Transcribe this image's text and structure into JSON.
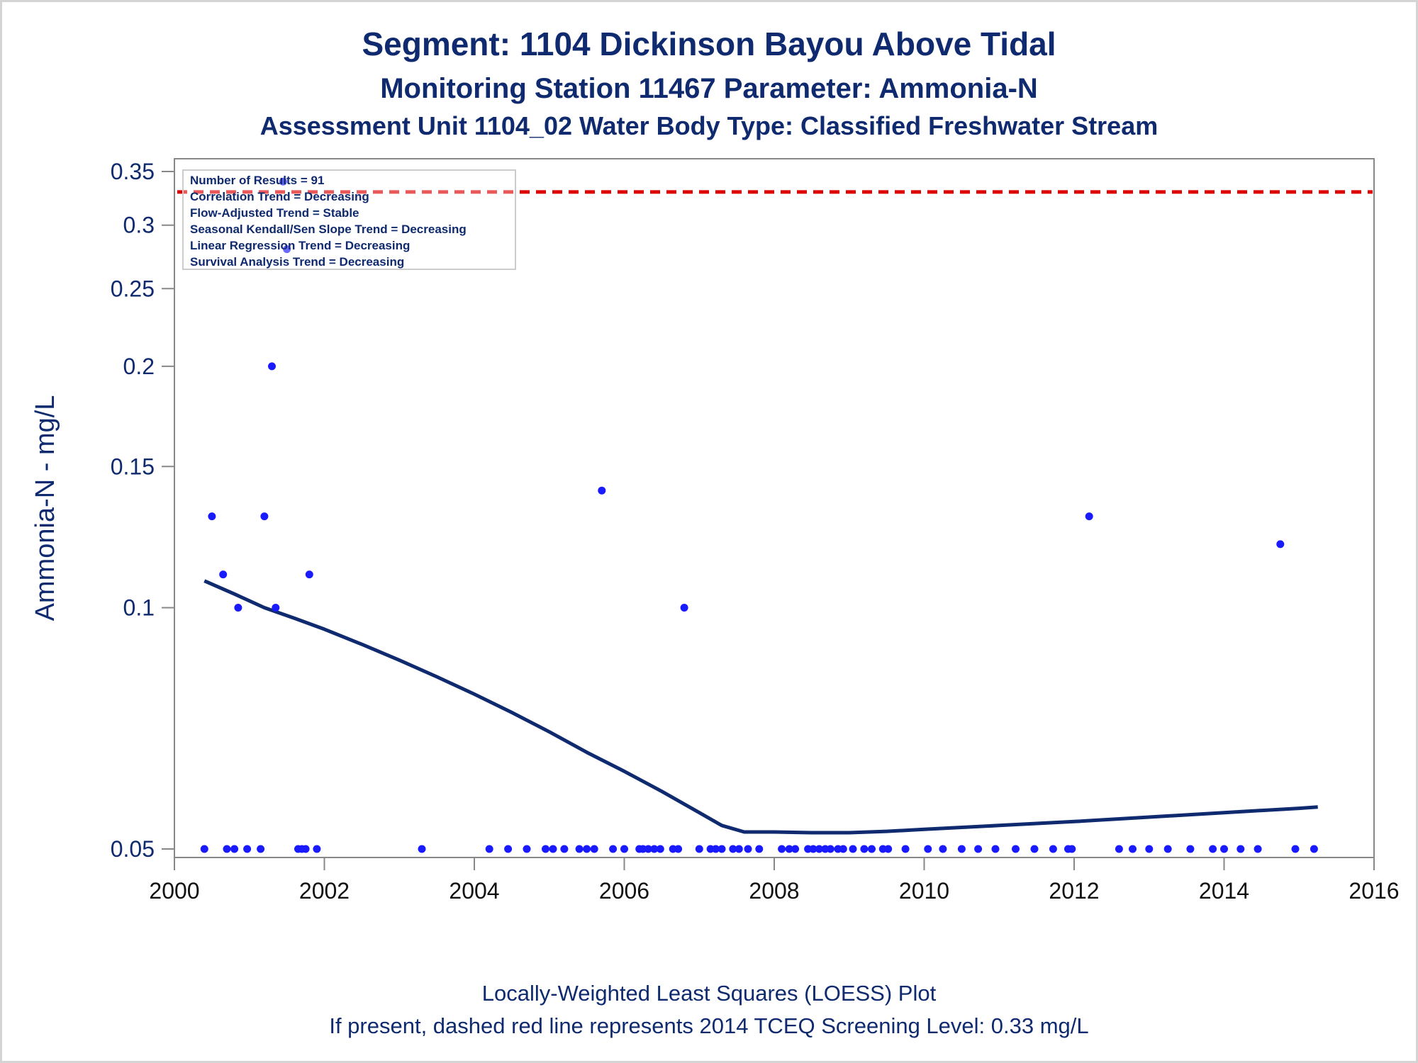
{
  "chart_data": {
    "type": "scatter",
    "title": "Segment: 1104  Dickinson Bayou Above Tidal",
    "subtitle": "Monitoring Station 11467 Parameter: Ammonia-N",
    "subtitle2": "Assessment Unit 1104_02   Water Body Type: Classified Freshwater Stream",
    "ylabel": "Ammonia-N - mg/L",
    "xlabel": "",
    "footnote1": "Locally-Weighted Least Squares (LOESS) Plot",
    "footnote2": "If present, dashed red line represents 2014 TCEQ Screening Level: 0.33 mg/L",
    "y_scale": "log",
    "ylim": [
      0.05,
      0.35
    ],
    "xlim": [
      2000,
      2016
    ],
    "x_ticks": [
      "2000",
      "2002",
      "2004",
      "2006",
      "2008",
      "2010",
      "2012",
      "2014",
      "2016"
    ],
    "y_ticks": [
      {
        "value": 0.35,
        "label": "0.35"
      },
      {
        "value": 0.3,
        "label": "0.3"
      },
      {
        "value": 0.25,
        "label": "0.25"
      },
      {
        "value": 0.2,
        "label": "0.2"
      },
      {
        "value": 0.15,
        "label": "0.15"
      },
      {
        "value": 0.1,
        "label": "0.1"
      },
      {
        "value": 0.05,
        "label": "0.05"
      }
    ],
    "screening_level": 0.33,
    "inset": [
      "Number of Results = 91",
      "Correlation Trend = Decreasing",
      "Flow-Adjusted Trend = Stable",
      "Seasonal Kendall/Sen Slope Trend = Decreasing",
      "Linear Regression Trend = Decreasing",
      "Survival Analysis Trend = Decreasing"
    ],
    "series": [
      {
        "type": "scatter",
        "points": [
          [
            2000.5,
            0.13
          ],
          [
            2000.65,
            0.11
          ],
          [
            2000.85,
            0.1
          ],
          [
            2001.2,
            0.13
          ],
          [
            2001.3,
            0.2
          ],
          [
            2001.35,
            0.1
          ],
          [
            2001.45,
            0.34
          ],
          [
            2001.5,
            0.28
          ],
          [
            2001.8,
            0.11
          ],
          [
            2005.7,
            0.14
          ],
          [
            2006.8,
            0.1
          ],
          [
            2012.2,
            0.13
          ],
          [
            2014.75,
            0.12
          ],
          [
            2000.4,
            0.05
          ],
          [
            2000.7,
            0.05
          ],
          [
            2000.8,
            0.05
          ],
          [
            2000.97,
            0.05
          ],
          [
            2001.15,
            0.05
          ],
          [
            2001.65,
            0.05
          ],
          [
            2001.7,
            0.05
          ],
          [
            2001.75,
            0.05
          ],
          [
            2001.9,
            0.05
          ],
          [
            2003.3,
            0.05
          ],
          [
            2004.2,
            0.05
          ],
          [
            2004.45,
            0.05
          ],
          [
            2004.7,
            0.05
          ],
          [
            2004.95,
            0.05
          ],
          [
            2005.05,
            0.05
          ],
          [
            2005.2,
            0.05
          ],
          [
            2005.4,
            0.05
          ],
          [
            2005.5,
            0.05
          ],
          [
            2005.6,
            0.05
          ],
          [
            2005.85,
            0.05
          ],
          [
            2006.0,
            0.05
          ],
          [
            2006.2,
            0.05
          ],
          [
            2006.25,
            0.05
          ],
          [
            2006.32,
            0.05
          ],
          [
            2006.4,
            0.05
          ],
          [
            2006.48,
            0.05
          ],
          [
            2006.65,
            0.05
          ],
          [
            2006.72,
            0.05
          ],
          [
            2007.0,
            0.05
          ],
          [
            2007.15,
            0.05
          ],
          [
            2007.22,
            0.05
          ],
          [
            2007.3,
            0.05
          ],
          [
            2007.45,
            0.05
          ],
          [
            2007.53,
            0.05
          ],
          [
            2007.65,
            0.05
          ],
          [
            2007.8,
            0.05
          ],
          [
            2008.1,
            0.05
          ],
          [
            2008.2,
            0.05
          ],
          [
            2008.28,
            0.05
          ],
          [
            2008.45,
            0.05
          ],
          [
            2008.52,
            0.05
          ],
          [
            2008.6,
            0.05
          ],
          [
            2008.68,
            0.05
          ],
          [
            2008.75,
            0.05
          ],
          [
            2008.85,
            0.05
          ],
          [
            2008.92,
            0.05
          ],
          [
            2009.05,
            0.05
          ],
          [
            2009.2,
            0.05
          ],
          [
            2009.3,
            0.05
          ],
          [
            2009.45,
            0.05
          ],
          [
            2009.52,
            0.05
          ],
          [
            2009.75,
            0.05
          ],
          [
            2010.05,
            0.05
          ],
          [
            2010.25,
            0.05
          ],
          [
            2010.5,
            0.05
          ],
          [
            2010.72,
            0.05
          ],
          [
            2010.95,
            0.05
          ],
          [
            2011.22,
            0.05
          ],
          [
            2011.47,
            0.05
          ],
          [
            2011.72,
            0.05
          ],
          [
            2011.92,
            0.05
          ],
          [
            2011.97,
            0.05
          ],
          [
            2012.6,
            0.05
          ],
          [
            2012.78,
            0.05
          ],
          [
            2013.0,
            0.05
          ],
          [
            2013.25,
            0.05
          ],
          [
            2013.55,
            0.05
          ],
          [
            2013.85,
            0.05
          ],
          [
            2014.0,
            0.05
          ],
          [
            2014.22,
            0.05
          ],
          [
            2014.45,
            0.05
          ],
          [
            2014.95,
            0.05
          ],
          [
            2015.2,
            0.05
          ]
        ]
      },
      {
        "type": "line",
        "name": "LOESS",
        "points": [
          [
            2000.4,
            0.108
          ],
          [
            2000.8,
            0.104
          ],
          [
            2001.2,
            0.1
          ],
          [
            2001.6,
            0.097
          ],
          [
            2002.0,
            0.094
          ],
          [
            2002.5,
            0.09
          ],
          [
            2003.0,
            0.086
          ],
          [
            2003.5,
            0.082
          ],
          [
            2004.0,
            0.078
          ],
          [
            2004.5,
            0.074
          ],
          [
            2005.0,
            0.07
          ],
          [
            2005.5,
            0.066
          ],
          [
            2006.0,
            0.0625
          ],
          [
            2006.5,
            0.059
          ],
          [
            2007.0,
            0.0555
          ],
          [
            2007.3,
            0.0535
          ],
          [
            2007.6,
            0.0525
          ],
          [
            2008.0,
            0.0525
          ],
          [
            2008.5,
            0.0524
          ],
          [
            2009.0,
            0.0524
          ],
          [
            2009.5,
            0.0526
          ],
          [
            2010.0,
            0.0529
          ],
          [
            2011.0,
            0.0535
          ],
          [
            2012.0,
            0.0541
          ],
          [
            2013.0,
            0.0548
          ],
          [
            2014.0,
            0.0555
          ],
          [
            2015.0,
            0.0562
          ],
          [
            2015.25,
            0.0564
          ]
        ]
      }
    ],
    "colors": {
      "points": "#1a1aff",
      "loess": "#0f2a6e",
      "screening": "#dd0000",
      "text": "#0f2a6e",
      "axis": "#888888"
    }
  }
}
